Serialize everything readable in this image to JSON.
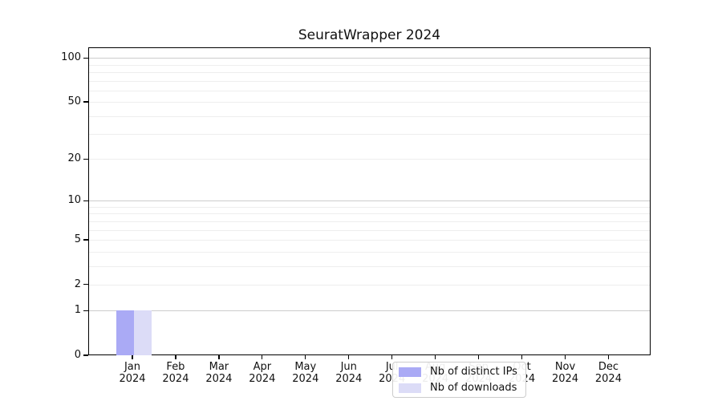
{
  "chart_data": {
    "type": "bar",
    "title": "SeuratWrapper 2024",
    "categories": [
      "Jan",
      "Feb",
      "Mar",
      "Apr",
      "May",
      "Jun",
      "Jul",
      "Aug",
      "Sep",
      "Oct",
      "Nov",
      "Dec"
    ],
    "category_year": "2024",
    "series": [
      {
        "name": "Nb of distinct IPs",
        "color": "#aaaaf5",
        "values": [
          1,
          0,
          0,
          0,
          0,
          0,
          0,
          0,
          0,
          0,
          0,
          0
        ]
      },
      {
        "name": "Nb of downloads",
        "color": "#dcdcf7",
        "values": [
          1,
          0,
          0,
          0,
          0,
          0,
          0,
          0,
          0,
          0,
          0,
          0
        ]
      }
    ],
    "xlabel": "",
    "ylabel": "",
    "y_axis": {
      "scale": "log10(value+1)",
      "tick_labels": [
        0,
        1,
        2,
        5,
        10,
        20,
        50,
        100
      ],
      "major_gridlines": [
        1,
        10,
        100
      ],
      "minor_gridlines": [
        2,
        3,
        4,
        5,
        6,
        7,
        8,
        9,
        20,
        30,
        40,
        50,
        60,
        70,
        80,
        90
      ],
      "ylim": [
        0,
        118
      ]
    },
    "grid": true,
    "legend": {
      "position": "lower-center",
      "entries": [
        "Nb of distinct IPs",
        "Nb of downloads"
      ]
    }
  },
  "colors": {
    "major_grid": "#cccccc",
    "minor_grid": "#eeeeee",
    "axis_frame": "#000000",
    "text": "#111111",
    "legend_border": "#cccccc",
    "background": "#ffffff"
  }
}
